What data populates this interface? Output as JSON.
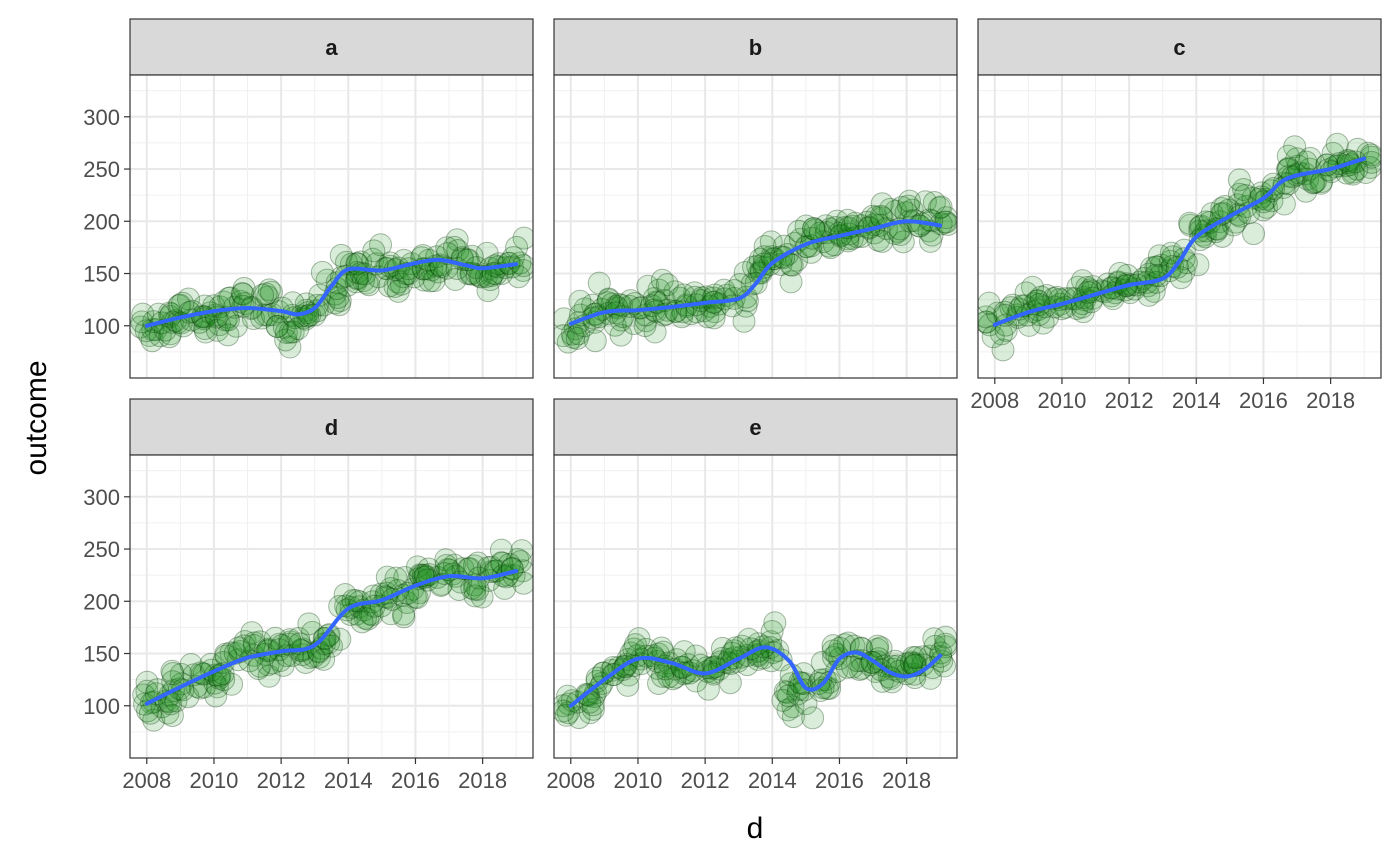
{
  "chart_data": {
    "type": "scatter",
    "facet_by": "group",
    "xlabel": "d",
    "ylabel": "outcome",
    "ylim": [
      50,
      340
    ],
    "xlim": [
      2007.5,
      2019.5
    ],
    "y_ticks": [
      100,
      150,
      200,
      250,
      300
    ],
    "x_ticks": [
      2008,
      2010,
      2012,
      2014,
      2016,
      2018
    ],
    "grid": true,
    "legend": "none",
    "point_color": "#1a8c1a",
    "point_outline": "#0b3d0b",
    "trend_color": "#3366ff",
    "strip_fill": "#d9d9d9",
    "panels": [
      {
        "name": "a",
        "trend": {
          "x": [
            2008,
            2009,
            2010,
            2011,
            2012,
            2012.5,
            2013,
            2013.5,
            2014,
            2015,
            2016,
            2016.7,
            2017.5,
            2018,
            2019
          ],
          "y": [
            100,
            108,
            114,
            117,
            114,
            111,
            117,
            138,
            154,
            153,
            160,
            163,
            158,
            155,
            159
          ]
        },
        "point_centers": {
          "x": [
            2008,
            2008.5,
            2009,
            2009.5,
            2010,
            2010.5,
            2011,
            2011.5,
            2012,
            2012.5,
            2013,
            2013.5,
            2014,
            2014.5,
            2015,
            2015.5,
            2016,
            2016.5,
            2017,
            2017.5,
            2018,
            2018.5,
            2019
          ],
          "y": [
            100,
            103,
            114,
            110,
            112,
            113,
            121,
            118,
            100,
            107,
            118,
            132,
            150,
            146,
            158,
            150,
            152,
            157,
            165,
            160,
            150,
            158,
            158
          ]
        }
      },
      {
        "name": "b",
        "trend": {
          "x": [
            2008,
            2009,
            2010,
            2011,
            2012,
            2013,
            2013.5,
            2014,
            2015,
            2016,
            2017,
            2018,
            2019
          ],
          "y": [
            102,
            113,
            115,
            118,
            122,
            126,
            140,
            160,
            178,
            186,
            193,
            200,
            196
          ]
        },
        "point_centers": {
          "x": [
            2008,
            2008.5,
            2009,
            2009.5,
            2010,
            2010.5,
            2011,
            2011.5,
            2012,
            2012.5,
            2013,
            2013.5,
            2014,
            2014.5,
            2015,
            2015.5,
            2016,
            2016.5,
            2017,
            2017.5,
            2018,
            2018.5,
            2019
          ],
          "y": [
            100,
            110,
            117,
            113,
            114,
            117,
            119,
            120,
            117,
            122,
            126,
            148,
            170,
            168,
            180,
            184,
            187,
            190,
            193,
            197,
            202,
            200,
            197
          ]
        }
      },
      {
        "name": "c",
        "trend": {
          "x": [
            2008,
            2009,
            2010,
            2011,
            2012,
            2013,
            2013.5,
            2014,
            2015,
            2016,
            2016.5,
            2017,
            2018,
            2019
          ],
          "y": [
            101,
            113,
            121,
            130,
            139,
            145,
            162,
            185,
            205,
            222,
            237,
            244,
            250,
            260
          ]
        },
        "point_centers": {
          "x": [
            2008,
            2008.5,
            2009,
            2009.5,
            2010,
            2010.5,
            2011,
            2011.5,
            2012,
            2012.5,
            2013,
            2013.5,
            2014,
            2014.5,
            2015,
            2015.5,
            2016,
            2016.5,
            2017,
            2017.5,
            2018,
            2018.5,
            2019
          ],
          "y": [
            100,
            108,
            117,
            119,
            121,
            126,
            133,
            137,
            139,
            143,
            148,
            160,
            184,
            194,
            210,
            212,
            220,
            238,
            250,
            246,
            252,
            255,
            262
          ]
        }
      },
      {
        "name": "d",
        "trend": {
          "x": [
            2008,
            2009,
            2010,
            2011,
            2012,
            2013,
            2014,
            2015,
            2016,
            2017,
            2018,
            2019
          ],
          "y": [
            102,
            118,
            133,
            146,
            152,
            158,
            193,
            201,
            215,
            224,
            222,
            229
          ]
        },
        "point_centers": {
          "x": [
            2008,
            2008.5,
            2009,
            2009.5,
            2010,
            2010.5,
            2011,
            2011.5,
            2012,
            2012.5,
            2013,
            2013.5,
            2014,
            2014.5,
            2015,
            2015.5,
            2016,
            2016.5,
            2017,
            2017.5,
            2018,
            2018.5,
            2019
          ],
          "y": [
            100,
            104,
            118,
            125,
            128,
            137,
            155,
            150,
            151,
            154,
            150,
            160,
            193,
            198,
            202,
            204,
            213,
            221,
            226,
            224,
            222,
            226,
            233
          ]
        }
      },
      {
        "name": "e",
        "trend": {
          "x": [
            2008,
            2009,
            2010,
            2011,
            2012,
            2013,
            2013.8,
            2014.5,
            2015,
            2015.5,
            2016,
            2016.5,
            2017,
            2017.5,
            2018,
            2018.5,
            2019
          ],
          "y": [
            100,
            125,
            145,
            141,
            131,
            145,
            156,
            143,
            117,
            121,
            145,
            151,
            143,
            132,
            128,
            134,
            148
          ]
        },
        "point_centers": {
          "x": [
            2008,
            2008.5,
            2009,
            2009.5,
            2010,
            2010.5,
            2011,
            2011.5,
            2012,
            2012.5,
            2013,
            2013.5,
            2014,
            2014.5,
            2015,
            2015.5,
            2016,
            2016.5,
            2017,
            2017.5,
            2018,
            2018.5,
            2019
          ],
          "y": [
            100,
            104,
            130,
            135,
            150,
            147,
            138,
            135,
            132,
            140,
            148,
            155,
            158,
            110,
            112,
            125,
            150,
            146,
            145,
            132,
            130,
            135,
            150
          ]
        }
      }
    ]
  }
}
